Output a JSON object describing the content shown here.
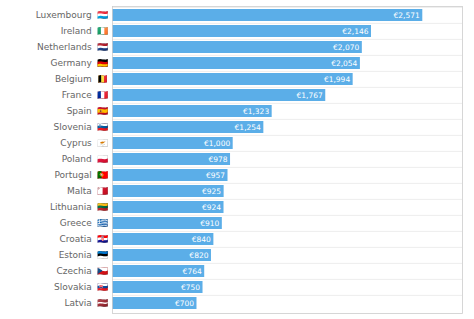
{
  "chart_data": {
    "type": "bar",
    "orientation": "horizontal",
    "categories": [
      "Luxembourg  🇱🇺",
      "Ireland  🇮🇪",
      "Netherlands  🇳🇱",
      "Germany  🇩🇪",
      "Belgium  🇧🇪",
      "France  🇫🇷",
      "Spain  🇪🇸",
      "Slovenia  🇸🇮",
      "Cyprus  🇨🇾",
      "Poland  🇵🇱",
      "Portugal  🇵🇹",
      "Malta  🇲🇹",
      "Lithuania  🇱🇹",
      "Greece  🇬🇷",
      "Croatia  🇭🇷",
      "Estonia  🇪🇪",
      "Czechia  🇨🇿",
      "Slovakia  🇸🇰",
      "Latvia  🇱🇻"
    ],
    "values": [
      2571,
      2146,
      2070,
      2054,
      1994,
      1767,
      1323,
      1254,
      1000,
      978,
      957,
      925,
      924,
      910,
      840,
      820,
      764,
      750,
      700
    ],
    "value_labels": [
      "€2,571",
      "€2,146",
      "€2,070",
      "€2,054",
      "€1,994",
      "€1,767",
      "€1,323",
      "€1,254",
      "€1,000",
      "€978",
      "€957",
      "€925",
      "€924",
      "€910",
      "€840",
      "€820",
      "€764",
      "€750",
      "€700"
    ],
    "data_labels": true,
    "color": "#5baee8",
    "xlim": [
      0,
      2900
    ],
    "tick_labels": "y",
    "grid": true
  }
}
